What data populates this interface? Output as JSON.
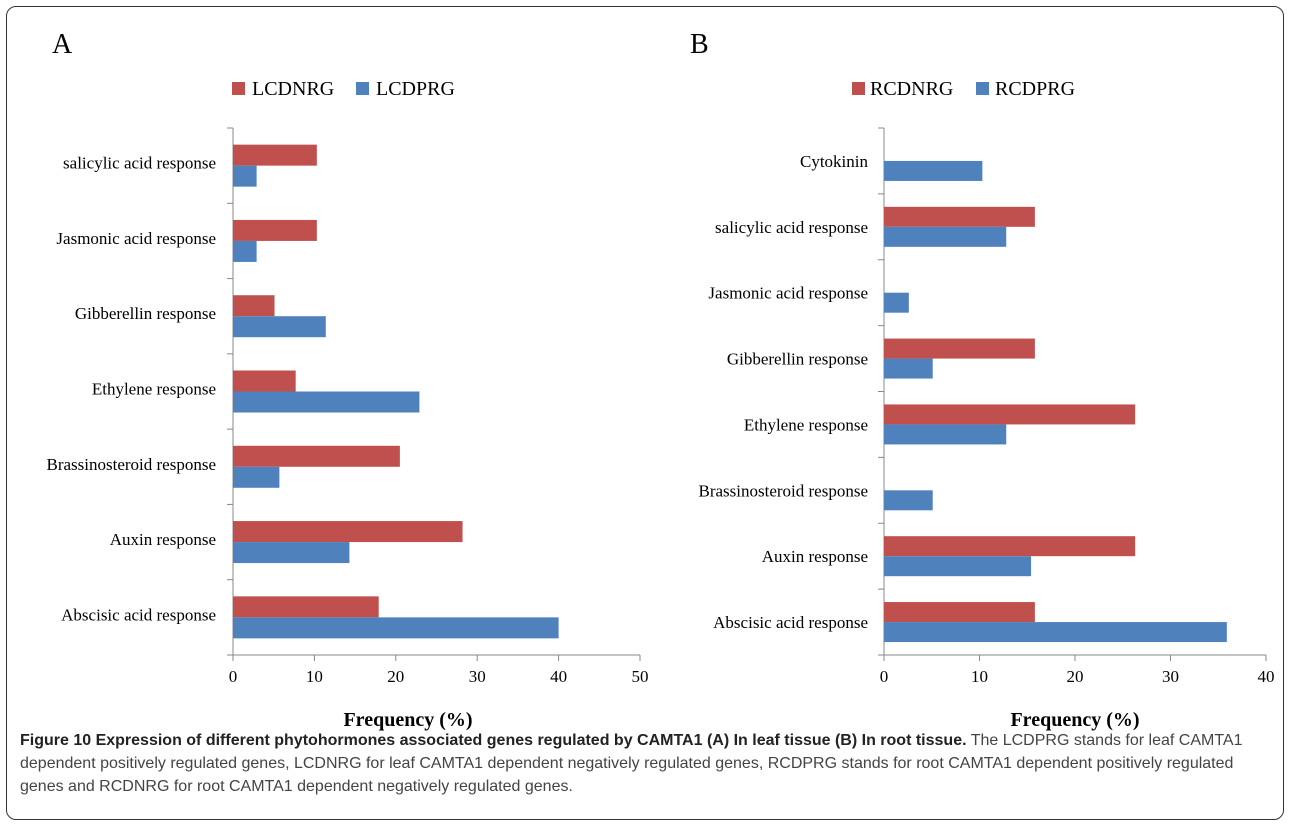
{
  "colors": {
    "negative": "#c0504d",
    "positive": "#4f81bd",
    "axis": "#888888"
  },
  "chart_data": [
    {
      "type": "bar",
      "panel": "A",
      "orientation": "horizontal",
      "xlabel": "Frequency (%)",
      "xlim": [
        0,
        50
      ],
      "xticks": [
        0,
        10,
        20,
        30,
        40,
        50
      ],
      "legend_placement": "top",
      "categories": [
        "salicylic acid response",
        "Jasmonic acid response",
        "Gibberellin response",
        "Ethylene response",
        "Brassinosteroid response",
        "Auxin response",
        "Abscisic acid response"
      ],
      "series": [
        {
          "name": "LCDNRG",
          "values": [
            10.3,
            10.3,
            5.1,
            7.7,
            20.5,
            28.2,
            17.9
          ]
        },
        {
          "name": "LCDPRG",
          "values": [
            2.9,
            2.9,
            11.4,
            22.9,
            5.7,
            14.3,
            40.0
          ]
        }
      ]
    },
    {
      "type": "bar",
      "panel": "B",
      "orientation": "horizontal",
      "xlabel": "Frequency (%)",
      "xlim": [
        0,
        40
      ],
      "xticks": [
        0,
        10,
        20,
        30,
        40
      ],
      "legend_placement": "top",
      "categories": [
        "Cytokinin",
        "salicylic acid response",
        "Jasmonic acid response",
        "Gibberellin response",
        "Ethylene response",
        "Brassinosteroid response",
        "Auxin response",
        "Abscisic acid response"
      ],
      "series": [
        {
          "name": "RCDNRG",
          "values": [
            0,
            15.8,
            0,
            15.8,
            26.3,
            0,
            26.3,
            15.8
          ]
        },
        {
          "name": "RCDPRG",
          "values": [
            10.3,
            12.8,
            2.6,
            5.1,
            12.8,
            5.1,
            15.4,
            35.9
          ]
        }
      ]
    }
  ],
  "caption": {
    "bold": "Figure 10 Expression of different phytohormones associated genes regulated by CAMTA1 (A) In leaf tissue (B) In root tissue.",
    "text": " The LCDPRG stands for leaf CAMTA1 dependent positively regulated genes, LCDNRG for leaf CAMTA1 dependent negatively regulated genes, RCDPRG stands for root CAMTA1 dependent positively regulated genes and RCDNRG for root CAMTA1 dependent negatively regulated genes."
  }
}
